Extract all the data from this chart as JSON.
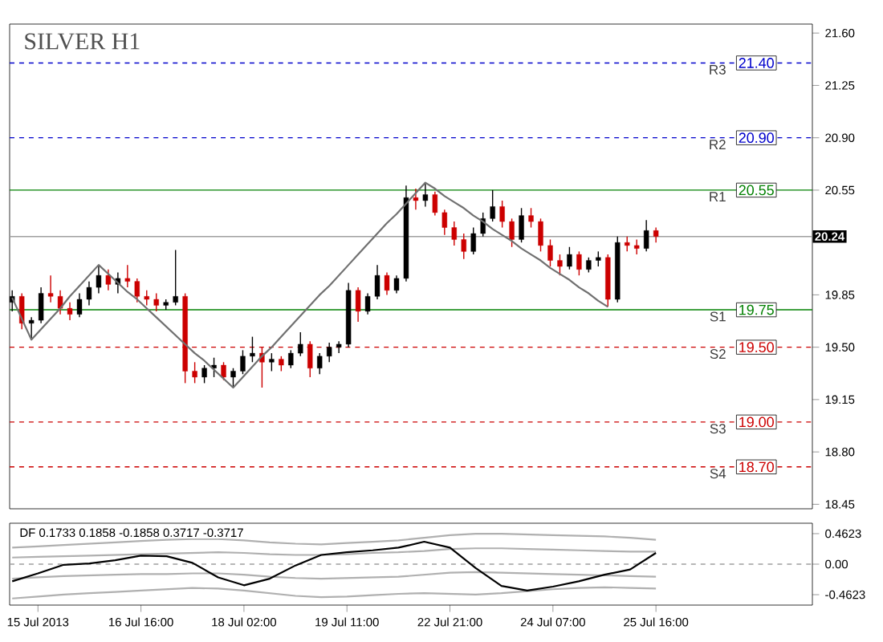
{
  "chart_data": [
    {
      "type": "candlestick",
      "title": "SILVER H1",
      "categories": [
        null,
        null,
        null,
        null,
        null,
        null,
        null,
        null,
        null,
        null,
        null,
        null,
        null,
        null,
        null,
        null,
        null,
        null,
        null,
        null,
        null,
        null,
        null,
        null,
        null,
        null,
        null,
        null,
        null,
        null,
        null,
        null,
        null,
        null,
        null,
        null,
        null,
        null,
        null,
        null,
        null,
        null,
        null,
        null,
        null,
        null,
        null,
        null,
        null,
        null,
        null,
        null,
        null,
        null,
        null,
        null,
        null,
        null,
        null,
        null,
        null,
        null,
        null,
        null,
        null,
        null,
        null,
        null
      ],
      "ohlc": [
        [
          19.8,
          19.88,
          19.74,
          19.84
        ],
        [
          19.84,
          19.86,
          19.62,
          19.66
        ],
        [
          19.66,
          19.7,
          19.55,
          19.68
        ],
        [
          19.68,
          19.9,
          19.66,
          19.86
        ],
        [
          19.86,
          19.98,
          19.8,
          19.84
        ],
        [
          19.84,
          19.88,
          19.72,
          19.76
        ],
        [
          19.76,
          19.8,
          19.68,
          19.72
        ],
        [
          19.72,
          19.86,
          19.7,
          19.82
        ],
        [
          19.82,
          19.94,
          19.78,
          19.9
        ],
        [
          19.9,
          20.05,
          19.86,
          19.98
        ],
        [
          19.98,
          20.02,
          19.88,
          19.92
        ],
        [
          19.92,
          20.0,
          19.86,
          19.96
        ],
        [
          19.96,
          20.05,
          19.9,
          19.94
        ],
        [
          19.94,
          19.96,
          19.8,
          19.84
        ],
        [
          19.84,
          19.88,
          19.78,
          19.82
        ],
        [
          19.82,
          19.86,
          19.74,
          19.78
        ],
        [
          19.78,
          19.82,
          19.75,
          19.8
        ],
        [
          19.8,
          20.15,
          19.78,
          19.84
        ],
        [
          19.84,
          19.86,
          19.26,
          19.34
        ],
        [
          19.34,
          19.4,
          19.26,
          19.3
        ],
        [
          19.3,
          19.38,
          19.26,
          19.36
        ],
        [
          19.36,
          19.43,
          19.3,
          19.38
        ],
        [
          19.38,
          19.4,
          19.28,
          19.3
        ],
        [
          19.3,
          19.36,
          19.23,
          19.34
        ],
        [
          19.34,
          19.48,
          19.32,
          19.44
        ],
        [
          19.44,
          19.57,
          19.4,
          19.46
        ],
        [
          19.46,
          19.5,
          19.23,
          19.4
        ],
        [
          19.4,
          19.46,
          19.34,
          19.42
        ],
        [
          19.42,
          19.44,
          19.34,
          19.38
        ],
        [
          19.38,
          19.48,
          19.36,
          19.46
        ],
        [
          19.46,
          19.6,
          19.44,
          19.52
        ],
        [
          19.52,
          19.54,
          19.3,
          19.36
        ],
        [
          19.36,
          19.46,
          19.32,
          19.44
        ],
        [
          19.44,
          19.53,
          19.4,
          19.5
        ],
        [
          19.5,
          19.54,
          19.46,
          19.52
        ],
        [
          19.52,
          19.93,
          19.5,
          19.88
        ],
        [
          19.88,
          19.9,
          19.67,
          19.74
        ],
        [
          19.74,
          19.86,
          19.72,
          19.84
        ],
        [
          19.84,
          20.05,
          19.82,
          19.98
        ],
        [
          19.98,
          20.0,
          19.85,
          19.88
        ],
        [
          19.88,
          19.98,
          19.86,
          19.96
        ],
        [
          19.96,
          20.58,
          19.94,
          20.5
        ],
        [
          20.5,
          20.56,
          20.42,
          20.48
        ],
        [
          20.48,
          20.6,
          20.44,
          20.52
        ],
        [
          20.52,
          20.54,
          20.38,
          20.4
        ],
        [
          20.4,
          20.42,
          20.25,
          20.3
        ],
        [
          20.3,
          20.34,
          20.18,
          20.22
        ],
        [
          20.22,
          20.26,
          20.09,
          20.14
        ],
        [
          20.14,
          20.3,
          20.12,
          20.26
        ],
        [
          20.26,
          20.4,
          20.24,
          20.36
        ],
        [
          20.36,
          20.55,
          20.34,
          20.44
        ],
        [
          20.44,
          20.48,
          20.3,
          20.34
        ],
        [
          20.34,
          20.36,
          20.17,
          20.22
        ],
        [
          20.22,
          20.43,
          20.2,
          20.38
        ],
        [
          20.38,
          20.43,
          20.3,
          20.34
        ],
        [
          20.34,
          20.36,
          20.14,
          20.18
        ],
        [
          20.18,
          20.22,
          20.04,
          20.08
        ],
        [
          20.08,
          20.12,
          19.98,
          20.04
        ],
        [
          20.04,
          20.17,
          20.02,
          20.12
        ],
        [
          20.12,
          20.14,
          19.98,
          20.02
        ],
        [
          20.02,
          20.1,
          20.0,
          20.08
        ],
        [
          20.08,
          20.14,
          20.04,
          20.1
        ],
        [
          20.1,
          20.12,
          19.77,
          19.82
        ],
        [
          19.82,
          20.24,
          19.8,
          20.2
        ],
        [
          20.2,
          20.24,
          20.14,
          20.18
        ],
        [
          20.18,
          20.22,
          20.12,
          20.16
        ],
        [
          20.16,
          20.35,
          20.14,
          20.28
        ],
        [
          20.28,
          20.3,
          20.2,
          20.24
        ]
      ],
      "colors": [
        "#000000",
        "#cc0000",
        "#000000",
        "#000000",
        "#cc0000",
        "#cc0000",
        "#cc0000",
        "#000000",
        "#000000",
        "#000000",
        "#cc0000",
        "#000000",
        "#cc0000",
        "#cc0000",
        "#cc0000",
        "#cc0000",
        "#000000",
        "#000000",
        "#cc0000",
        "#cc0000",
        "#000000",
        "#000000",
        "#cc0000",
        "#000000",
        "#000000",
        "#000000",
        "#cc0000",
        "#000000",
        "#cc0000",
        "#000000",
        "#000000",
        "#cc0000",
        "#000000",
        "#000000",
        "#000000",
        "#000000",
        "#cc0000",
        "#000000",
        "#000000",
        "#cc0000",
        "#000000",
        "#000000",
        "#cc0000",
        "#000000",
        "#cc0000",
        "#cc0000",
        "#cc0000",
        "#cc0000",
        "#000000",
        "#000000",
        "#000000",
        "#cc0000",
        "#cc0000",
        "#000000",
        "#cc0000",
        "#cc0000",
        "#cc0000",
        "#cc0000",
        "#000000",
        "#cc0000",
        "#000000",
        "#000000",
        "#cc0000",
        "#000000",
        "#cc0000",
        "#cc0000",
        "#000000",
        "#cc0000"
      ],
      "series": [
        {
          "type": "line",
          "color": "#707070",
          "values": [
            19.83,
            19.69,
            19.55,
            19.62,
            19.69,
            19.76,
            19.84,
            19.91,
            19.98,
            20.05,
            19.99,
            19.93,
            19.87,
            19.82,
            19.76,
            19.7,
            19.64,
            19.58,
            19.52,
            19.46,
            19.41,
            19.35,
            19.29,
            19.23,
            19.3,
            19.37,
            19.44,
            19.5,
            19.57,
            19.64,
            19.71,
            19.78,
            19.85,
            19.91,
            19.98,
            20.05,
            20.12,
            20.19,
            20.26,
            20.33,
            20.39,
            20.46,
            20.53,
            20.6,
            20.56,
            20.51,
            20.47,
            20.43,
            20.38,
            20.34,
            20.29,
            20.25,
            20.21,
            20.16,
            20.12,
            20.08,
            20.03,
            19.99,
            19.95,
            19.9,
            19.86,
            19.81,
            19.77,
            null,
            null,
            null,
            null,
            null
          ]
        }
      ],
      "ylim": [
        18.42,
        21.66
      ],
      "yticks": [
        {
          "value": 21.6,
          "label": "21.60"
        },
        {
          "value": 21.25,
          "label": "21.25"
        },
        {
          "value": 20.9,
          "label": "20.90"
        },
        {
          "value": 20.55,
          "label": "20.55"
        },
        {
          "value": 19.85,
          "label": "19.85"
        },
        {
          "value": 19.5,
          "label": "19.50"
        },
        {
          "value": 19.15,
          "label": "19.15"
        },
        {
          "value": 18.8,
          "label": "18.80"
        },
        {
          "value": 18.45,
          "label": "18.45"
        }
      ],
      "tick_labels": "y",
      "ref_lines": [
        {
          "axis": "y",
          "value": 21.4,
          "label": "21.40",
          "color": "#0000cc",
          "line_style": "dashed"
        },
        {
          "axis": "y",
          "value": 20.9,
          "label": "20.90",
          "color": "#0000cc",
          "line_style": "dashed"
        },
        {
          "axis": "y",
          "value": 20.55,
          "label": "20.55",
          "color": "#008000",
          "line_style": "solid"
        },
        {
          "axis": "y",
          "value": 20.24,
          "label": "20.24",
          "color": "#a0a0a0",
          "line_style": "solid"
        },
        {
          "axis": "y",
          "value": 19.75,
          "label": "19.75",
          "color": "#008000",
          "line_style": "solid"
        },
        {
          "axis": "y",
          "value": 19.5,
          "label": "19.50",
          "color": "#cc0000",
          "line_style": "dashed"
        },
        {
          "axis": "y",
          "value": 19.0,
          "label": "19.00",
          "color": "#cc0000",
          "line_style": "dashed"
        },
        {
          "axis": "y",
          "value": 18.7,
          "label": "18.70",
          "color": "#cc0000",
          "line_style": "dashed"
        }
      ],
      "annotations": [
        {
          "text": "R3",
          "y": 21.4
        },
        {
          "text": "R2",
          "y": 20.9
        },
        {
          "text": "R1",
          "y": 20.55
        },
        {
          "text": "S1",
          "y": 19.75
        },
        {
          "text": "S2",
          "y": 19.5
        },
        {
          "text": "S3",
          "y": 19.0
        },
        {
          "text": "S4",
          "y": 18.7
        }
      ]
    },
    {
      "type": "line",
      "title": "DF 0.1733 0.1858 -0.1858 0.3717 -0.3717",
      "categories": [
        null,
        "15 Jul 2013",
        null,
        null,
        null,
        "16 Jul 16:00",
        null,
        null,
        null,
        "18 Jul 02:00",
        null,
        null,
        null,
        "19 Jul 11:00",
        null,
        null,
        null,
        "22 Jul 21:00",
        null,
        null,
        null,
        "24 Jul 07:00",
        null,
        null,
        null,
        "25 Jul 16:00"
      ],
      "series": [
        {
          "color": "#b0b0b0",
          "values": [
            0.25,
            0.27,
            0.29,
            0.31,
            0.33,
            0.35,
            0.37,
            0.38,
            0.38,
            0.36,
            0.33,
            0.31,
            0.3,
            0.32,
            0.34,
            0.36,
            0.4,
            0.44,
            0.46,
            0.46,
            0.45,
            0.44,
            0.43,
            0.42,
            0.4,
            0.37
          ]
        },
        {
          "color": "#b0b0b0",
          "values": [
            0.1,
            0.11,
            0.12,
            0.13,
            0.14,
            0.15,
            0.16,
            0.17,
            0.18,
            0.17,
            0.15,
            0.14,
            0.14,
            0.15,
            0.17,
            0.18,
            0.2,
            0.23,
            0.24,
            0.24,
            0.23,
            0.22,
            0.21,
            0.2,
            0.19,
            0.19
          ]
        },
        {
          "color": "#b0b0b0",
          "values": [
            -0.22,
            -0.2,
            -0.18,
            -0.17,
            -0.16,
            -0.15,
            -0.15,
            -0.14,
            -0.14,
            -0.16,
            -0.19,
            -0.21,
            -0.22,
            -0.21,
            -0.2,
            -0.19,
            -0.16,
            -0.13,
            -0.12,
            -0.13,
            -0.14,
            -0.15,
            -0.16,
            -0.17,
            -0.18,
            -0.19
          ]
        },
        {
          "color": "#b0b0b0",
          "values": [
            -0.52,
            -0.49,
            -0.46,
            -0.44,
            -0.42,
            -0.4,
            -0.38,
            -0.36,
            -0.37,
            -0.4,
            -0.44,
            -0.48,
            -0.5,
            -0.49,
            -0.47,
            -0.45,
            -0.44,
            -0.45,
            -0.46,
            -0.44,
            -0.41,
            -0.38,
            -0.36,
            -0.35,
            -0.36,
            -0.37
          ]
        },
        {
          "color": "#000000",
          "values": [
            -0.26,
            -0.14,
            -0.01,
            0.01,
            0.06,
            0.13,
            0.12,
            0.02,
            -0.2,
            -0.32,
            -0.22,
            -0.02,
            0.14,
            0.18,
            0.21,
            0.25,
            0.34,
            0.25,
            -0.06,
            -0.33,
            -0.4,
            -0.34,
            -0.26,
            -0.16,
            -0.08,
            0.17
          ]
        }
      ],
      "ylim": [
        -0.62,
        0.62
      ],
      "yticks": [
        {
          "value": 0.4623,
          "label": "0.4623"
        },
        {
          "value": 0,
          "label": "0.00"
        },
        {
          "value": -0.4623,
          "label": "-0.4623"
        }
      ],
      "ref_lines": [
        {
          "axis": "y",
          "value": 0,
          "color": "#a0a0a0",
          "line_style": "dashed"
        }
      ]
    }
  ]
}
